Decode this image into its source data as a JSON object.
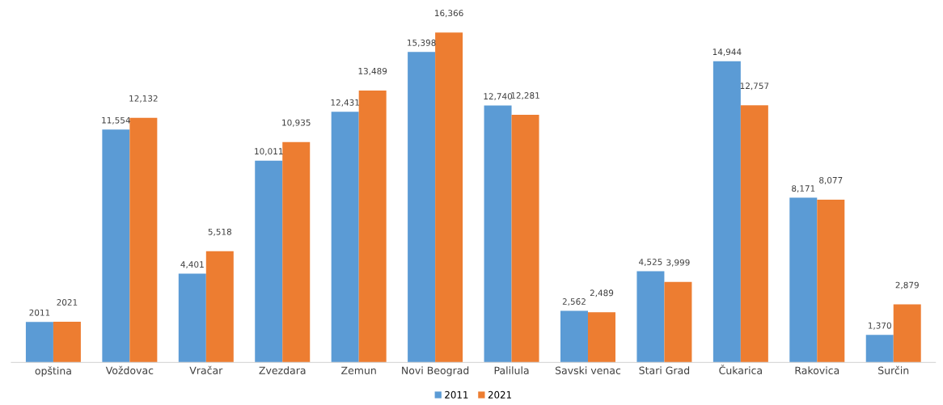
{
  "chart_data": {
    "type": "bar",
    "categories": [
      "opština",
      "Voždovac",
      "Vračar",
      "Zvezdara",
      "Zemun",
      "Novi Beograd",
      "Palilula",
      "Savski venac",
      "Stari Grad",
      "Čukarica",
      "Rakovica",
      "Surčin"
    ],
    "series": [
      {
        "name": "2011",
        "color": "#5b9bd5",
        "values": [
          2011,
          11554,
          4401,
          10011,
          12431,
          15398,
          12740,
          2562,
          4525,
          14944,
          8171,
          1370
        ],
        "value_labels": [
          "2011",
          "11,554",
          "4,401",
          "10,011",
          "12,431",
          "15,398",
          "12,740",
          "2,562",
          "4,525",
          "14,944",
          "8,171",
          "1,370"
        ]
      },
      {
        "name": "2021",
        "color": "#ed7d31",
        "values": [
          2021,
          12132,
          5518,
          10935,
          13489,
          16366,
          12281,
          2489,
          3999,
          12757,
          8077,
          2879
        ],
        "value_labels": [
          "2021",
          "12,132",
          "5,518",
          "10,935",
          "13,489",
          "16,366",
          "12,281",
          "2,489",
          "3,999",
          "12,757",
          "8,077",
          "2,879"
        ]
      }
    ],
    "legend": "bottom"
  }
}
